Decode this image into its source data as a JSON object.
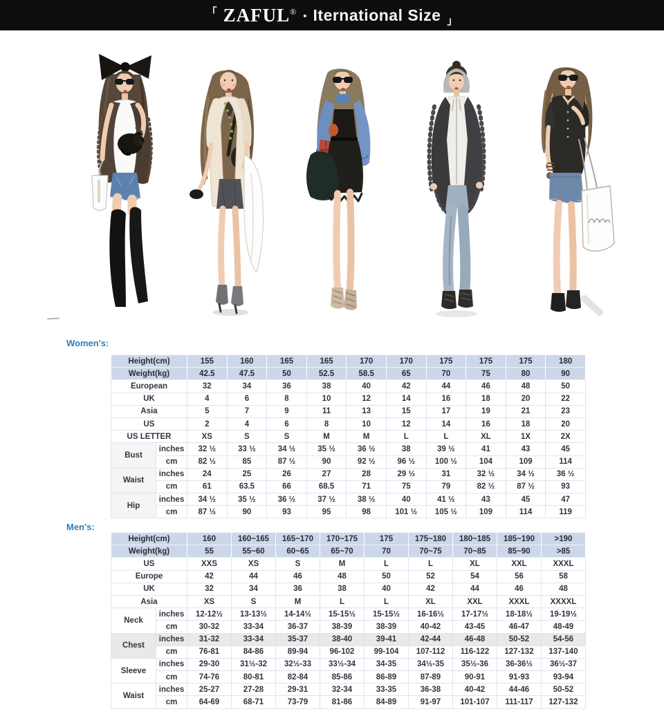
{
  "header": {
    "bracket_left": "「",
    "brand": "ZAFUL",
    "reg": "®",
    "bullet": "•",
    "title": "Iternational Size",
    "bracket_right": "」"
  },
  "illustrations": [
    {
      "alt": "girl with big black hair bow, sunglasses, fur vest, white tee, denim shorts, thigh-high black boots, holding a black puppy and a small white bag"
    },
    {
      "alt": "girl with long brown hair, cream cardigan, charcoal mini skirt, green chain necklace, black shoulder bag, white coat draped over arm, heeled booties"
    },
    {
      "alt": "girl with sunglasses, blue denim jacket, black feathered dress, red plaid scarf, dark green bag, lace-up heels"
    },
    {
      "alt": "girl with black fur jacket over light hoodie, gray jogger pants, dark lace-up boots"
    },
    {
      "alt": "girl with side braid, sunglasses, black blouse, denim shorts, large white shopper bag, black ankle boots"
    }
  ],
  "colors": {
    "topbar_bg": "#0d0d0e",
    "band_row_bg": "#ccd7e9",
    "highlight_bg": "#e9e9e9",
    "section_label": "#2d7fb8",
    "table_border": "#c6d3e8"
  },
  "womens": {
    "section_label": "Women's:",
    "rows": [
      {
        "kind": "band",
        "label": "Height(cm)",
        "values": [
          "155",
          "160",
          "165",
          "165",
          "170",
          "170",
          "175",
          "175",
          "175",
          "180"
        ]
      },
      {
        "kind": "band",
        "label": "Weight(kg)",
        "values": [
          "42.5",
          "47.5",
          "50",
          "52.5",
          "58.5",
          "65",
          "70",
          "75",
          "80",
          "90"
        ]
      },
      {
        "kind": "plain",
        "label": "European",
        "values": [
          "32",
          "34",
          "36",
          "38",
          "40",
          "42",
          "44",
          "46",
          "48",
          "50"
        ]
      },
      {
        "kind": "plain",
        "label": "UK",
        "values": [
          "4",
          "6",
          "8",
          "10",
          "12",
          "14",
          "16",
          "18",
          "20",
          "22"
        ]
      },
      {
        "kind": "plain",
        "label": "Asia",
        "values": [
          "5",
          "7",
          "9",
          "11",
          "13",
          "15",
          "17",
          "19",
          "21",
          "23"
        ]
      },
      {
        "kind": "plain",
        "label": "US",
        "values": [
          "2",
          "4",
          "6",
          "8",
          "10",
          "12",
          "14",
          "16",
          "18",
          "20"
        ]
      },
      {
        "kind": "plain",
        "label": "US LETTER",
        "values": [
          "XS",
          "S",
          "S",
          "M",
          "M",
          "L",
          "L",
          "XL",
          "1X",
          "2X"
        ]
      },
      {
        "kind": "group",
        "label": "Bust",
        "shade_label": true,
        "sub": [
          {
            "unit": "inches",
            "values": [
              "32 ½",
              "33 ½",
              "34 ½",
              "35 ½",
              "36 ½",
              "38",
              "39 ½",
              "41",
              "43",
              "45"
            ]
          },
          {
            "unit": "cm",
            "values": [
              "82 ½",
              "85",
              "87 ½",
              "90",
              "92 ½",
              "96 ½",
              "100 ½",
              "104",
              "109",
              "114"
            ]
          }
        ]
      },
      {
        "kind": "group",
        "label": "Waist",
        "shade_label": true,
        "sub": [
          {
            "unit": "inches",
            "values": [
              "24",
              "25",
              "26",
              "27",
              "28",
              "29 ½",
              "31",
              "32 ½",
              "34 ½",
              "36 ½"
            ]
          },
          {
            "unit": "cm",
            "values": [
              "61",
              "63.5",
              "66",
              "68.5",
              "71",
              "75",
              "79",
              "82 ½",
              "87 ½",
              "93"
            ]
          }
        ]
      },
      {
        "kind": "group",
        "label": "Hip",
        "shade_label": true,
        "sub": [
          {
            "unit": "inches",
            "values": [
              "34 ½",
              "35 ½",
              "36 ½",
              "37 ½",
              "38 ½",
              "40",
              "41 ½",
              "43",
              "45",
              "47"
            ]
          },
          {
            "unit": "cm",
            "values": [
              "87 ½",
              "90",
              "93",
              "95",
              "98",
              "101 ½",
              "105 ½",
              "109",
              "114",
              "119"
            ]
          }
        ]
      }
    ]
  },
  "mens": {
    "section_label": "Men's:",
    "rows": [
      {
        "kind": "band",
        "label": "Height(cm)",
        "values": [
          "160",
          "160~165",
          "165~170",
          "170~175",
          "175",
          "175~180",
          "180~185",
          "185~190",
          ">190"
        ]
      },
      {
        "kind": "band",
        "label": "Weight(kg)",
        "values": [
          "55",
          "55~60",
          "60~65",
          "65~70",
          "70",
          "70~75",
          "70~85",
          "85~90",
          ">85"
        ]
      },
      {
        "kind": "plain",
        "label": "US",
        "values": [
          "XXS",
          "XS",
          "S",
          "M",
          "L",
          "L",
          "XL",
          "XXL",
          "XXXL"
        ]
      },
      {
        "kind": "plain",
        "label": "Europe",
        "values": [
          "42",
          "44",
          "46",
          "48",
          "50",
          "52",
          "54",
          "56",
          "58"
        ]
      },
      {
        "kind": "plain",
        "label": "UK",
        "values": [
          "32",
          "34",
          "36",
          "38",
          "40",
          "42",
          "44",
          "46",
          "48"
        ]
      },
      {
        "kind": "plain",
        "label": "Asia",
        "values": [
          "XS",
          "S",
          "M",
          "L",
          "L",
          "XL",
          "XXL",
          "XXXL",
          "XXXXL"
        ]
      },
      {
        "kind": "group",
        "label": "Neck",
        "sub": [
          {
            "unit": "inches",
            "values": [
              "12-12½",
              "13-13½",
              "14-14½",
              "15-15½",
              "15-15½",
              "16-16½",
              "17-17½",
              "18-18½",
              "19-19½"
            ]
          },
          {
            "unit": "cm",
            "values": [
              "30-32",
              "33-34",
              "36-37",
              "38-39",
              "38-39",
              "40-42",
              "43-45",
              "46-47",
              "48-49"
            ]
          }
        ]
      },
      {
        "kind": "group",
        "label": "Chest",
        "highlight_label": true,
        "sub": [
          {
            "unit": "inches",
            "highlight": true,
            "values": [
              "31-32",
              "33-34",
              "35-37",
              "38-40",
              "39-41",
              "42-44",
              "46-48",
              "50-52",
              "54-56"
            ]
          },
          {
            "unit": "cm",
            "values": [
              "76-81",
              "84-86",
              "89-94",
              "96-102",
              "99-104",
              "107-112",
              "116-122",
              "127-132",
              "137-140"
            ]
          }
        ]
      },
      {
        "kind": "group",
        "label": "Sleeve",
        "sub": [
          {
            "unit": "inches",
            "values": [
              "29-30",
              "31½-32",
              "32½-33",
              "33½-34",
              "34-35",
              "34½-35",
              "35½-36",
              "36-36½",
              "36½-37"
            ]
          },
          {
            "unit": "cm",
            "values": [
              "74-76",
              "80-81",
              "82-84",
              "85-86",
              "86-89",
              "87-89",
              "90-91",
              "91-93",
              "93-94"
            ]
          }
        ]
      },
      {
        "kind": "group",
        "label": "Waist",
        "sub": [
          {
            "unit": "inches",
            "values": [
              "25-27",
              "27-28",
              "29-31",
              "32-34",
              "33-35",
              "36-38",
              "40-42",
              "44-46",
              "50-52"
            ]
          },
          {
            "unit": "cm",
            "values": [
              "64-69",
              "68-71",
              "73-79",
              "81-86",
              "84-89",
              "91-97",
              "101-107",
              "111-117",
              "127-132"
            ]
          }
        ]
      }
    ]
  }
}
